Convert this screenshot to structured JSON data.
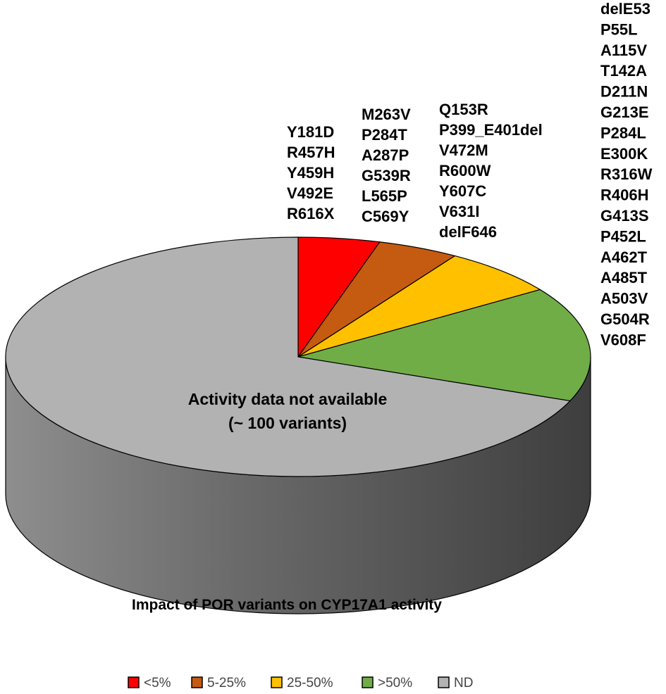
{
  "chart_data": {
    "type": "pie",
    "title": "Impact of POR variants on CYP17A1 activity",
    "categories": [
      "<5%",
      "5-25%",
      "25-50%",
      ">50%",
      "ND"
    ],
    "values": [
      4.5,
      4.5,
      6.5,
      15.5,
      69
    ],
    "colors": [
      "#ff0000",
      "#c55a11",
      "#ffc000",
      "#70ad47",
      "#b2b2b2"
    ],
    "slices": [
      {
        "category": "<5%",
        "variants": [
          "Y181D",
          "R457H",
          "Y459H",
          "V492E",
          "R616X"
        ]
      },
      {
        "category": "5-25%",
        "variants": [
          "M263V",
          "P284T",
          "A287P",
          "G539R",
          "L565P",
          "C569Y"
        ]
      },
      {
        "category": "25-50%",
        "variants": [
          "Q153R",
          "P399_E401del",
          "V472M",
          "R600W",
          "Y607C",
          "V631I",
          "delF646"
        ]
      },
      {
        "category": ">50%",
        "variants": [
          "delE53",
          "P55L",
          "A115V",
          "T142A",
          "D211N",
          "G213E",
          "P284L",
          "E300K",
          "R316W",
          "R406H",
          "G413S",
          "P452L",
          "A462T",
          "A485T",
          "A503V",
          "G504R",
          "V608F"
        ]
      },
      {
        "category": "ND",
        "variants": []
      }
    ],
    "center_label": [
      "Activity data not available",
      "(~ 100 variants)"
    ],
    "legend_position": "bottom"
  }
}
